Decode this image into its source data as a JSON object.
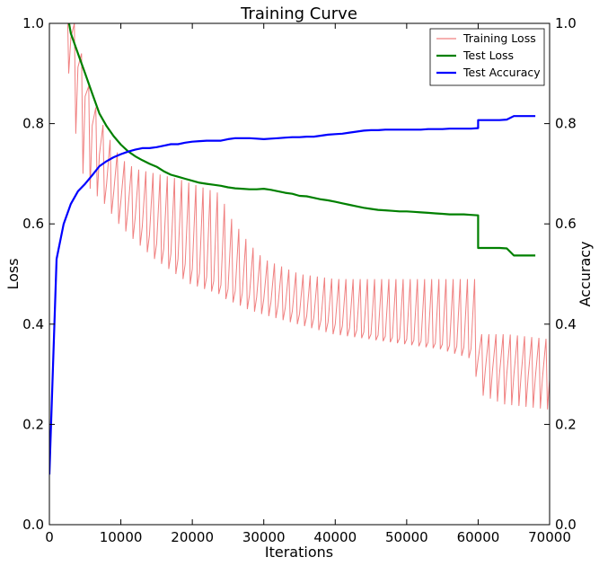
{
  "chart_data": {
    "type": "line",
    "title": "Training Curve",
    "xlabel": "Iterations",
    "ylabel": "Loss",
    "y2label": "Accuracy",
    "xlim": [
      0,
      70000
    ],
    "ylim": [
      0,
      1.0
    ],
    "y2lim": [
      0,
      1.0
    ],
    "xticks": [
      0,
      10000,
      20000,
      30000,
      40000,
      50000,
      60000,
      70000
    ],
    "xtick_labels": [
      "0",
      "10000",
      "20000",
      "30000",
      "40000",
      "50000",
      "60000",
      "70000"
    ],
    "yticks": [
      0,
      0.2,
      0.4,
      0.6,
      0.8,
      1.0
    ],
    "ytick_labels": [
      "0.0",
      "0.2",
      "0.4",
      "0.6",
      "0.8",
      "1.0"
    ],
    "y2tick_labels": [
      "0.0",
      "0.2",
      "0.4",
      "0.6",
      "0.8",
      "1.0"
    ],
    "grid": false,
    "legend_position": "top-right",
    "series": [
      {
        "name": "Training Loss",
        "color": "#f08080",
        "axis": "left",
        "style": "oscillating",
        "peak_x": [
          2500,
          3000,
          3500,
          4000,
          5000,
          6000,
          8000,
          10000,
          12000,
          15000,
          18000,
          20000,
          24000,
          25000,
          28000,
          30000,
          35000,
          40000,
          45000,
          50000,
          55000,
          59500,
          60500,
          64000,
          70000
        ],
        "peak_y": [
          1.05,
          1.0,
          1.0,
          0.98,
          0.9,
          0.85,
          0.78,
          0.73,
          0.71,
          0.7,
          0.69,
          0.68,
          0.66,
          0.62,
          0.56,
          0.53,
          0.5,
          0.49,
          0.49,
          0.49,
          0.49,
          0.49,
          0.38,
          0.38,
          0.37
        ],
        "trough_x": [
          2500,
          3000,
          3500,
          4000,
          5000,
          6000,
          8000,
          10000,
          12000,
          15000,
          18000,
          20000,
          24000,
          25000,
          28000,
          30000,
          35000,
          40000,
          45000,
          50000,
          55000,
          59500,
          60500,
          64000,
          70000
        ],
        "trough_y": [
          1.0,
          0.9,
          0.85,
          0.78,
          0.7,
          0.67,
          0.64,
          0.6,
          0.57,
          0.53,
          0.5,
          0.48,
          0.46,
          0.45,
          0.43,
          0.42,
          0.4,
          0.38,
          0.37,
          0.36,
          0.35,
          0.33,
          0.26,
          0.24,
          0.23
        ],
        "low_x": [
          2500,
          8000,
          15000,
          20000,
          25000,
          30000,
          35000,
          40000,
          45000,
          50000,
          55000,
          59500,
          60500,
          64000,
          70000
        ],
        "low_y": [
          1.0,
          0.68,
          0.56,
          0.51,
          0.47,
          0.45,
          0.42,
          0.4,
          0.38,
          0.37,
          0.36,
          0.35,
          0.31,
          0.3,
          0.29
        ],
        "period": 1000
      },
      {
        "name": "Test Loss",
        "color": "#008000",
        "axis": "left",
        "x": [
          2500,
          3000,
          4000,
          5000,
          6000,
          7000,
          8000,
          9000,
          10000,
          11000,
          12000,
          13000,
          14000,
          15000,
          16000,
          17000,
          18000,
          19000,
          20000,
          21000,
          22000,
          23000,
          24000,
          25000,
          26000,
          27000,
          28000,
          29000,
          30000,
          31000,
          32000,
          33000,
          34000,
          35000,
          36000,
          37000,
          38000,
          39000,
          40000,
          41000,
          42000,
          43000,
          44000,
          45000,
          46000,
          47000,
          48000,
          49000,
          50000,
          51000,
          52000,
          53000,
          54000,
          55000,
          56000,
          57000,
          58000,
          59000,
          60000,
          60001,
          61000,
          62000,
          63000,
          64000,
          65000,
          66000,
          67000,
          68000
        ],
        "y": [
          1.02,
          0.98,
          0.94,
          0.9,
          0.86,
          0.82,
          0.795,
          0.775,
          0.758,
          0.745,
          0.735,
          0.727,
          0.72,
          0.714,
          0.705,
          0.698,
          0.694,
          0.69,
          0.686,
          0.682,
          0.68,
          0.678,
          0.676,
          0.673,
          0.671,
          0.67,
          0.669,
          0.669,
          0.67,
          0.668,
          0.665,
          0.662,
          0.66,
          0.656,
          0.655,
          0.652,
          0.649,
          0.647,
          0.644,
          0.641,
          0.638,
          0.635,
          0.632,
          0.63,
          0.628,
          0.627,
          0.626,
          0.625,
          0.625,
          0.624,
          0.623,
          0.622,
          0.621,
          0.62,
          0.619,
          0.619,
          0.619,
          0.618,
          0.617,
          0.552,
          0.552,
          0.552,
          0.552,
          0.551,
          0.537,
          0.537,
          0.537,
          0.537
        ]
      },
      {
        "name": "Test Accuracy",
        "color": "#0000ff",
        "axis": "right",
        "x": [
          0,
          1000,
          2000,
          3000,
          4000,
          5000,
          6000,
          7000,
          8000,
          9000,
          10000,
          11000,
          12000,
          13000,
          14000,
          15000,
          16000,
          17000,
          18000,
          19000,
          20000,
          21000,
          22000,
          23000,
          24000,
          25000,
          26000,
          27000,
          28000,
          29000,
          30000,
          31000,
          32000,
          33000,
          34000,
          35000,
          36000,
          37000,
          38000,
          39000,
          40000,
          41000,
          42000,
          43000,
          44000,
          45000,
          46000,
          47000,
          48000,
          49000,
          50000,
          51000,
          52000,
          53000,
          54000,
          55000,
          56000,
          57000,
          58000,
          59000,
          60000,
          60001,
          61000,
          62000,
          63000,
          64000,
          65000,
          66000,
          67000,
          68000
        ],
        "y": [
          0.1,
          0.53,
          0.6,
          0.64,
          0.665,
          0.68,
          0.697,
          0.715,
          0.725,
          0.733,
          0.739,
          0.744,
          0.748,
          0.751,
          0.751,
          0.753,
          0.756,
          0.759,
          0.759,
          0.762,
          0.764,
          0.765,
          0.766,
          0.766,
          0.766,
          0.769,
          0.771,
          0.771,
          0.771,
          0.77,
          0.769,
          0.77,
          0.771,
          0.772,
          0.773,
          0.773,
          0.774,
          0.774,
          0.776,
          0.778,
          0.779,
          0.78,
          0.782,
          0.784,
          0.786,
          0.787,
          0.787,
          0.788,
          0.788,
          0.788,
          0.788,
          0.788,
          0.788,
          0.789,
          0.789,
          0.789,
          0.79,
          0.79,
          0.79,
          0.79,
          0.791,
          0.807,
          0.807,
          0.807,
          0.807,
          0.808,
          0.815,
          0.815,
          0.815,
          0.815
        ]
      }
    ]
  }
}
